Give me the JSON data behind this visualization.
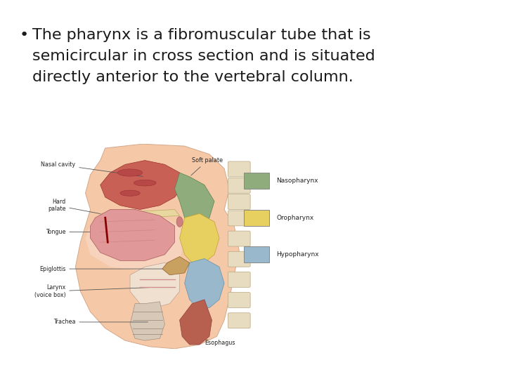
{
  "background_color": "#ffffff",
  "text_color": "#1a1a1a",
  "text_fontsize": 16,
  "bullet": "•",
  "line1": "The pharynx is a fibromuscular tube that is",
  "line2": "semicircular in cross section and is situated",
  "line3": "directly anterior to the vertebral column.",
  "legend_items": [
    {
      "label": "Nasopharynx",
      "color": "#8fad7c"
    },
    {
      "label": "Oropharynx",
      "color": "#e8d060"
    },
    {
      "label": "Hypopharynx",
      "color": "#9ab8cc"
    }
  ],
  "skin_color": "#f5c9a8",
  "neck_color": "#f0c0a0",
  "nasal_color": "#c86055",
  "tongue_color": "#e09090",
  "palate_color": "#e8d8b0",
  "epiglottis_color": "#c8a060",
  "trachea_color": "#c8b0a0",
  "esoph_color": "#b06050",
  "label_fontsize": 6.5,
  "legend_fontsize": 8
}
